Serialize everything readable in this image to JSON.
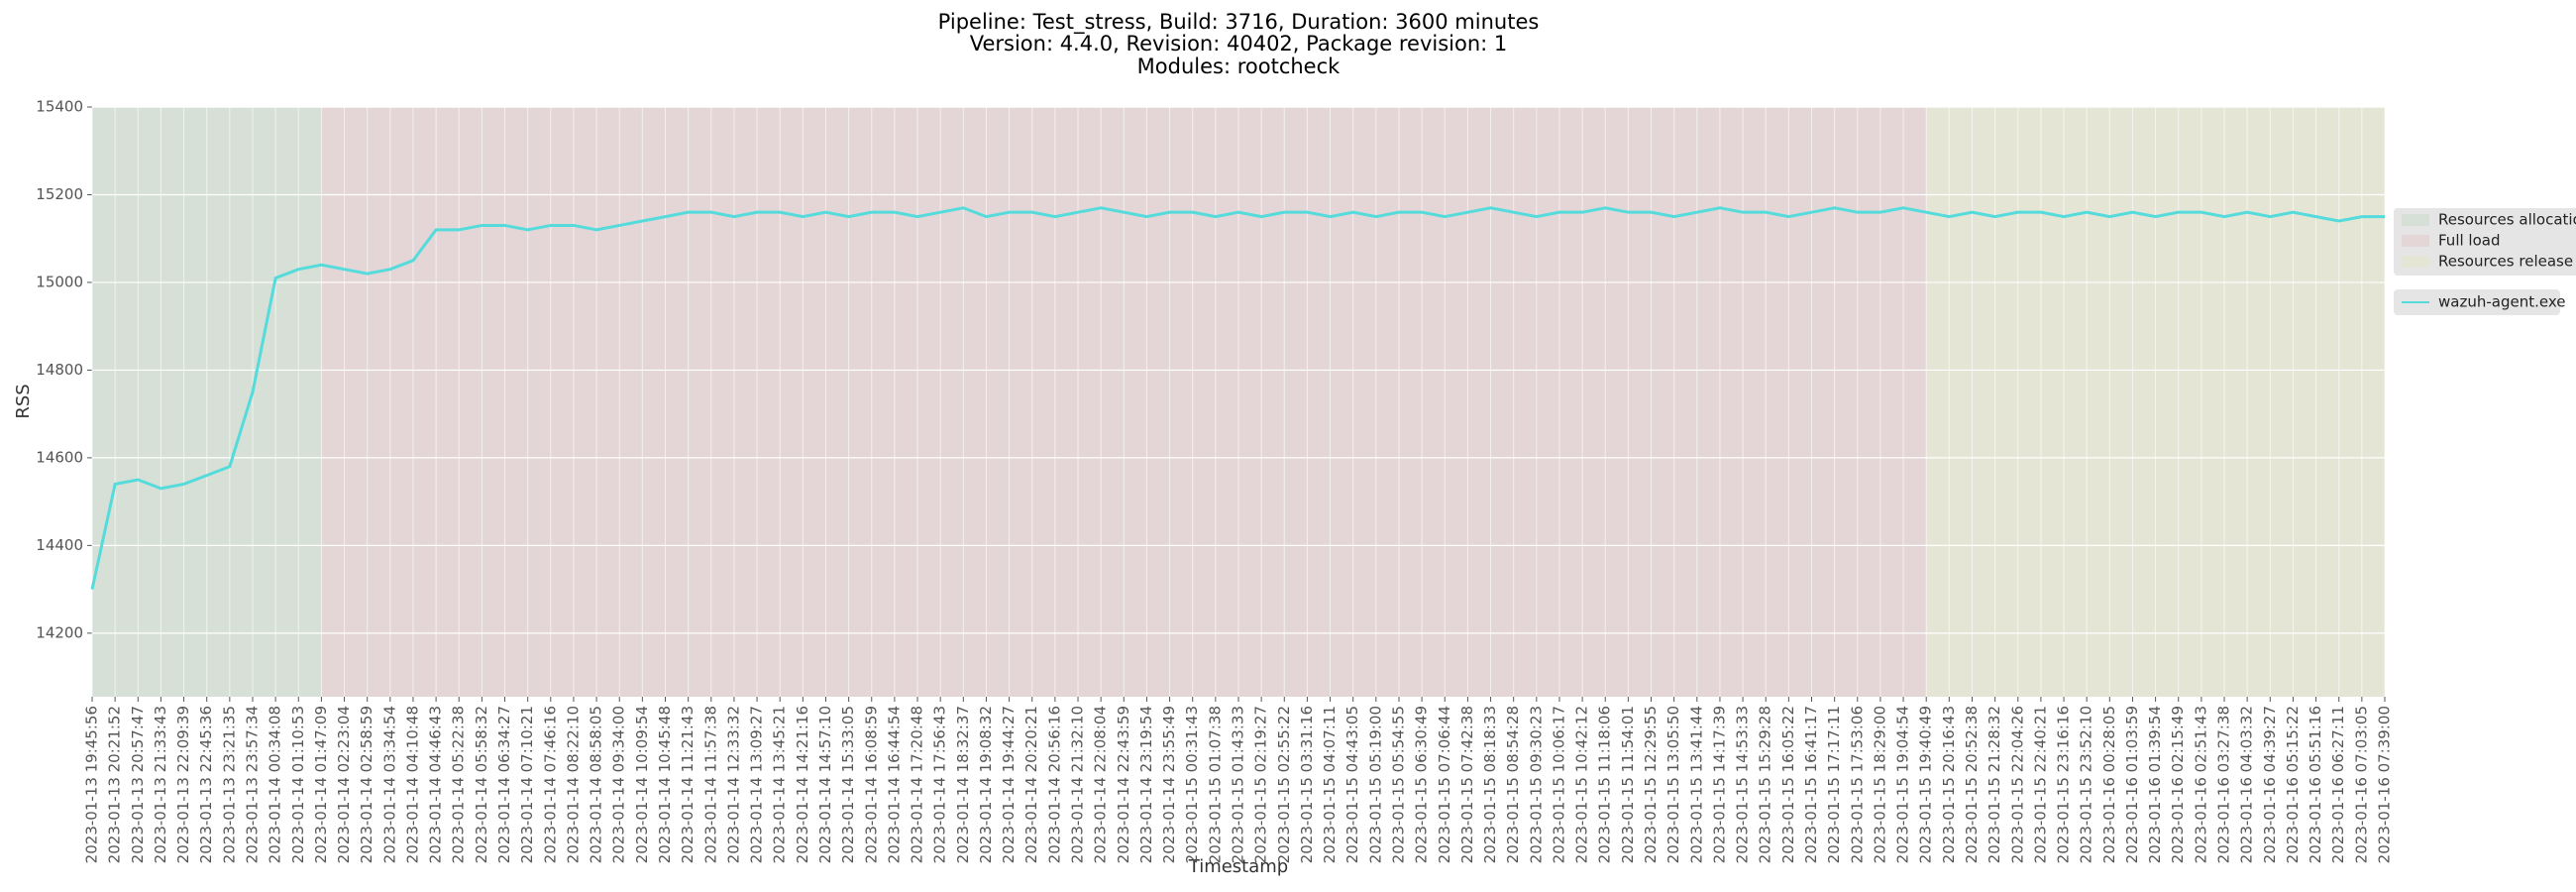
{
  "chart_data": {
    "type": "line",
    "title": "Pipeline: Test_stress, Build: 3716, Duration: 3600 minutes",
    "subtitle": "Version: 4.4.0, Revision: 40402, Package revision: 1",
    "subtitle2": "Modules: rootcheck",
    "x_label": "Timestamp",
    "y_label": "RSS",
    "categories": [
      "2023-01-13 19:45:56",
      "2023-01-13 20:21:52",
      "2023-01-13 20:57:47",
      "2023-01-13 21:33:43",
      "2023-01-13 22:09:39",
      "2023-01-13 22:45:36",
      "2023-01-13 23:21:35",
      "2023-01-13 23:57:34",
      "2023-01-14 00:34:08",
      "2023-01-14 01:10:53",
      "2023-01-14 01:47:09",
      "2023-01-14 02:23:04",
      "2023-01-14 02:58:59",
      "2023-01-14 03:34:54",
      "2023-01-14 04:10:48",
      "2023-01-14 04:46:43",
      "2023-01-14 05:22:38",
      "2023-01-14 05:58:32",
      "2023-01-14 06:34:27",
      "2023-01-14 07:10:21",
      "2023-01-14 07:46:16",
      "2023-01-14 08:22:10",
      "2023-01-14 08:58:05",
      "2023-01-14 09:34:00",
      "2023-01-14 10:09:54",
      "2023-01-14 10:45:48",
      "2023-01-14 11:21:43",
      "2023-01-14 11:57:38",
      "2023-01-14 12:33:32",
      "2023-01-14 13:09:27",
      "2023-01-14 13:45:21",
      "2023-01-14 14:21:16",
      "2023-01-14 14:57:10",
      "2023-01-14 15:33:05",
      "2023-01-14 16:08:59",
      "2023-01-14 16:44:54",
      "2023-01-14 17:20:48",
      "2023-01-14 17:56:43",
      "2023-01-14 18:32:37",
      "2023-01-14 19:08:32",
      "2023-01-14 19:44:27",
      "2023-01-14 20:20:21",
      "2023-01-14 20:56:16",
      "2023-01-14 21:32:10",
      "2023-01-14 22:08:04",
      "2023-01-14 22:43:59",
      "2023-01-14 23:19:54",
      "2023-01-14 23:55:49",
      "2023-01-15 00:31:43",
      "2023-01-15 01:07:38",
      "2023-01-15 01:43:33",
      "2023-01-15 02:19:27",
      "2023-01-15 02:55:22",
      "2023-01-15 03:31:16",
      "2023-01-15 04:07:11",
      "2023-01-15 04:43:05",
      "2023-01-15 05:19:00",
      "2023-01-15 05:54:55",
      "2023-01-15 06:30:49",
      "2023-01-15 07:06:44",
      "2023-01-15 07:42:38",
      "2023-01-15 08:18:33",
      "2023-01-15 08:54:28",
      "2023-01-15 09:30:23",
      "2023-01-15 10:06:17",
      "2023-01-15 10:42:12",
      "2023-01-15 11:18:06",
      "2023-01-15 11:54:01",
      "2023-01-15 12:29:55",
      "2023-01-15 13:05:50",
      "2023-01-15 13:41:44",
      "2023-01-15 14:17:39",
      "2023-01-15 14:53:33",
      "2023-01-15 15:29:28",
      "2023-01-15 16:05:22",
      "2023-01-15 16:41:17",
      "2023-01-15 17:17:11",
      "2023-01-15 17:53:06",
      "2023-01-15 18:29:00",
      "2023-01-15 19:04:54",
      "2023-01-15 19:40:49",
      "2023-01-15 20:16:43",
      "2023-01-15 20:52:38",
      "2023-01-15 21:28:32",
      "2023-01-15 22:04:26",
      "2023-01-15 22:40:21",
      "2023-01-15 23:16:16",
      "2023-01-15 23:52:10",
      "2023-01-16 00:28:05",
      "2023-01-16 01:03:59",
      "2023-01-16 01:39:54",
      "2023-01-16 02:15:49",
      "2023-01-16 02:51:43",
      "2023-01-16 03:27:38",
      "2023-01-16 04:03:32",
      "2023-01-16 04:39:27",
      "2023-01-16 05:15:22",
      "2023-01-16 05:51:16",
      "2023-01-16 06:27:11",
      "2023-01-16 07:03:05",
      "2023-01-16 07:39:00"
    ],
    "series": [
      {
        "name": "wazuh-agent.exe",
        "color": "#55dbdb",
        "values": [
          14300,
          14540,
          14550,
          14530,
          14540,
          14560,
          14580,
          14750,
          15010,
          15030,
          15040,
          15030,
          15020,
          15030,
          15050,
          15120,
          15120,
          15130,
          15130,
          15120,
          15130,
          15130,
          15120,
          15130,
          15140,
          15150,
          15160,
          15160,
          15150,
          15160,
          15160,
          15150,
          15160,
          15150,
          15160,
          15160,
          15150,
          15160,
          15170,
          15150,
          15160,
          15160,
          15150,
          15160,
          15170,
          15160,
          15150,
          15160,
          15160,
          15150,
          15160,
          15150,
          15160,
          15160,
          15150,
          15160,
          15150,
          15160,
          15160,
          15150,
          15160,
          15170,
          15160,
          15150,
          15160,
          15160,
          15170,
          15160,
          15160,
          15150,
          15160,
          15170,
          15160,
          15160,
          15150,
          15160,
          15170,
          15160,
          15160,
          15170,
          15160,
          15150,
          15160,
          15150,
          15160,
          15160,
          15150,
          15160,
          15150,
          15160,
          15150,
          15160,
          15160,
          15150,
          15160,
          15150,
          15160,
          15150,
          15140,
          15150,
          15150
        ]
      }
    ],
    "spans": [
      {
        "name": "Resources allocation",
        "color": "#d6e0d6",
        "start": "2023-01-13 19:45:56",
        "end": "2023-01-14 01:47:09"
      },
      {
        "name": "Full load",
        "color": "#e4d6d6",
        "start": "2023-01-14 01:47:09",
        "end": "2023-01-15 19:40:49"
      },
      {
        "name": "Resources release",
        "color": "#e5e5d6",
        "start": "2023-01-15 19:40:49",
        "end": "2023-01-16 07:39:00"
      }
    ],
    "ylim": [
      14055,
      15400
    ],
    "yticks": [
      14200,
      14400,
      14600,
      14800,
      15000,
      15200,
      15400
    ],
    "grid": true
  }
}
